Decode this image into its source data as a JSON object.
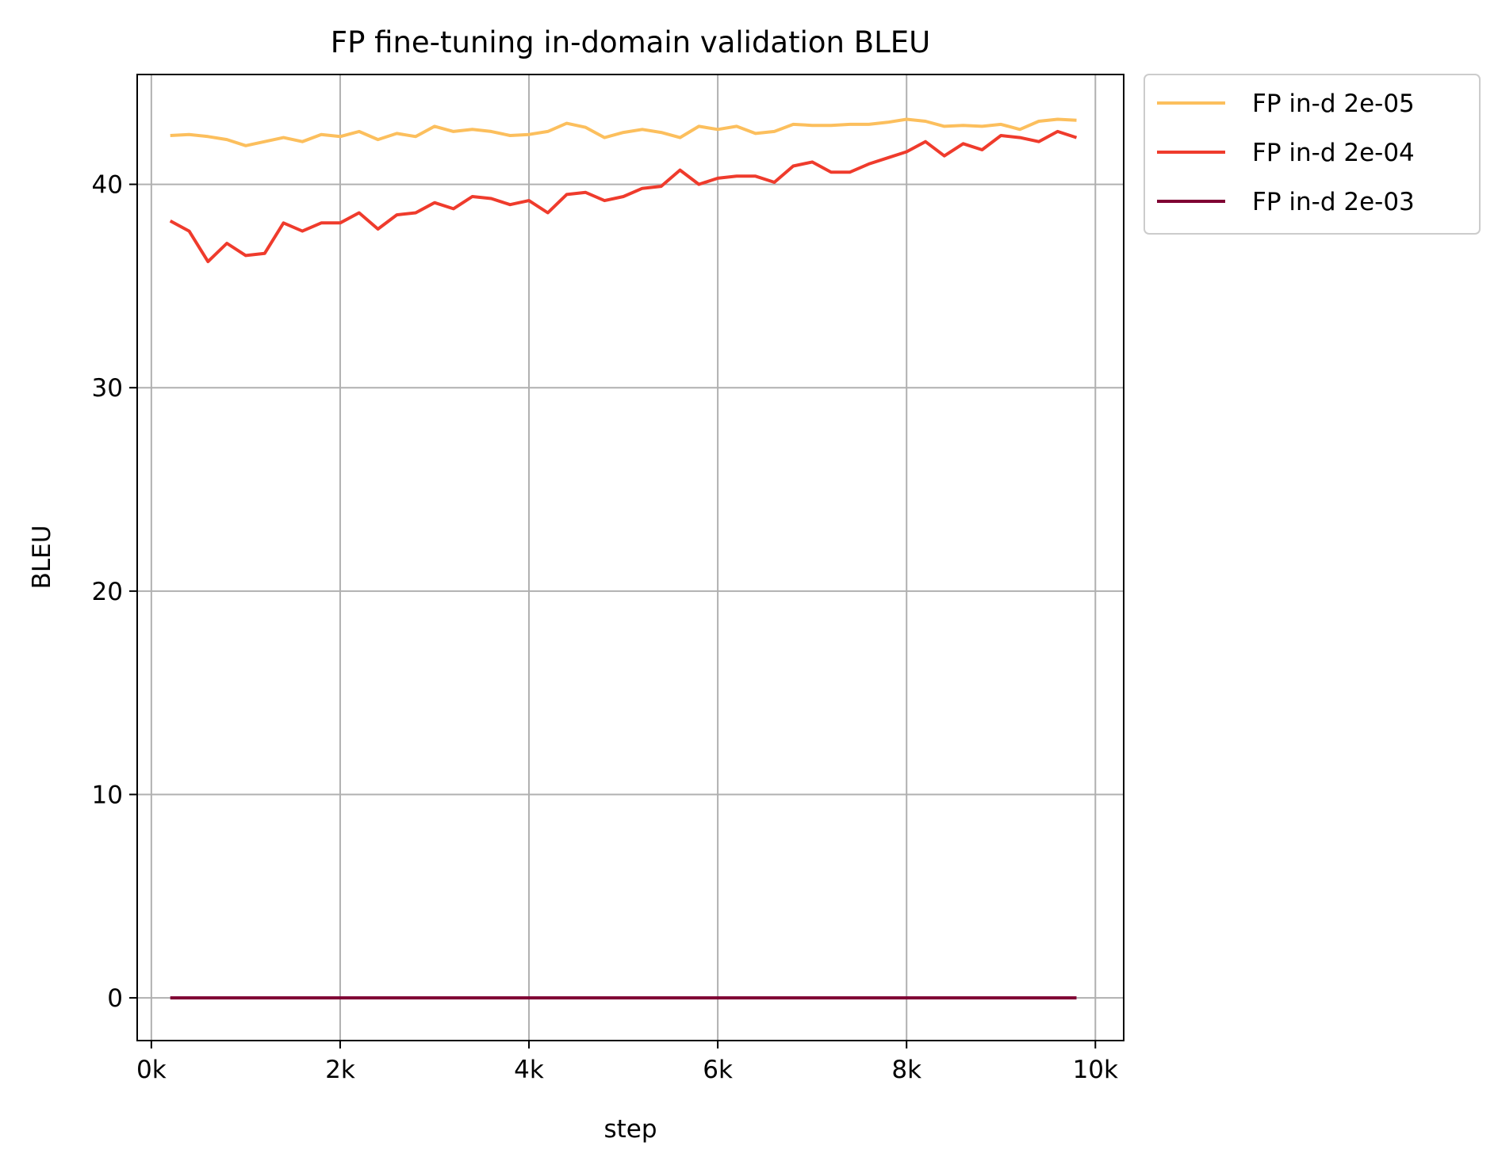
{
  "chart_data": {
    "type": "line",
    "title": "FP fine-tuning in-domain validation BLEU",
    "xlabel": "step",
    "ylabel": "BLEU",
    "xlim": [
      -150,
      10300
    ],
    "ylim": [
      -2.1,
      45.4
    ],
    "xticks": [
      0,
      2000,
      4000,
      6000,
      8000,
      10000
    ],
    "xtick_labels": [
      "0k",
      "2k",
      "4k",
      "6k",
      "8k",
      "10k"
    ],
    "yticks": [
      0,
      10,
      20,
      30,
      40
    ],
    "ytick_labels": [
      "0",
      "10",
      "20",
      "30",
      "40"
    ],
    "grid": true,
    "legend_placement": "outside upper right",
    "x": [
      200,
      400,
      600,
      800,
      1000,
      1200,
      1400,
      1600,
      1800,
      2000,
      2200,
      2400,
      2600,
      2800,
      3000,
      3200,
      3400,
      3600,
      3800,
      4000,
      4200,
      4400,
      4600,
      4800,
      5000,
      5200,
      5400,
      5600,
      5800,
      6000,
      6200,
      6400,
      6600,
      6800,
      7000,
      7200,
      7400,
      7600,
      7800,
      8000,
      8200,
      8400,
      8600,
      8800,
      9000,
      9200,
      9400,
      9600,
      9800
    ],
    "series": [
      {
        "name": "FP in-d 2e-05",
        "color": "#fcbf5d",
        "values": [
          42.4,
          42.45,
          42.35,
          42.2,
          41.9,
          42.1,
          42.3,
          42.1,
          42.45,
          42.35,
          42.6,
          42.2,
          42.5,
          42.35,
          42.85,
          42.6,
          42.7,
          42.6,
          42.4,
          42.45,
          42.6,
          43.0,
          42.8,
          42.3,
          42.55,
          42.7,
          42.55,
          42.3,
          42.85,
          42.7,
          42.85,
          42.5,
          42.6,
          42.95,
          42.9,
          42.9,
          42.95,
          42.95,
          43.05,
          43.2,
          43.1,
          42.85,
          42.9,
          42.85,
          42.95,
          42.7,
          43.1,
          43.2,
          43.15
        ]
      },
      {
        "name": "FP in-d 2e-04",
        "color": "#ef3b2c",
        "values": [
          38.2,
          37.7,
          36.2,
          37.1,
          36.5,
          36.6,
          38.1,
          37.7,
          38.1,
          38.1,
          38.6,
          37.8,
          38.5,
          38.6,
          39.1,
          38.8,
          39.4,
          39.3,
          39.0,
          39.2,
          38.6,
          39.5,
          39.6,
          39.2,
          39.4,
          39.8,
          39.9,
          40.7,
          40.0,
          40.3,
          40.4,
          40.4,
          40.1,
          40.9,
          41.1,
          40.6,
          40.6,
          41.0,
          41.3,
          41.6,
          42.1,
          41.4,
          42.0,
          41.7,
          42.4,
          42.3,
          42.1,
          42.6,
          42.3
        ]
      },
      {
        "name": "FP in-d 2e-03",
        "color": "#7f0033",
        "values": [
          0,
          0,
          0,
          0,
          0,
          0,
          0,
          0,
          0,
          0,
          0,
          0,
          0,
          0,
          0,
          0,
          0,
          0,
          0,
          0,
          0,
          0,
          0,
          0,
          0,
          0,
          0,
          0,
          0,
          0,
          0,
          0,
          0,
          0,
          0,
          0,
          0,
          0,
          0,
          0,
          0,
          0,
          0,
          0,
          0,
          0,
          0,
          0,
          0
        ]
      }
    ]
  }
}
